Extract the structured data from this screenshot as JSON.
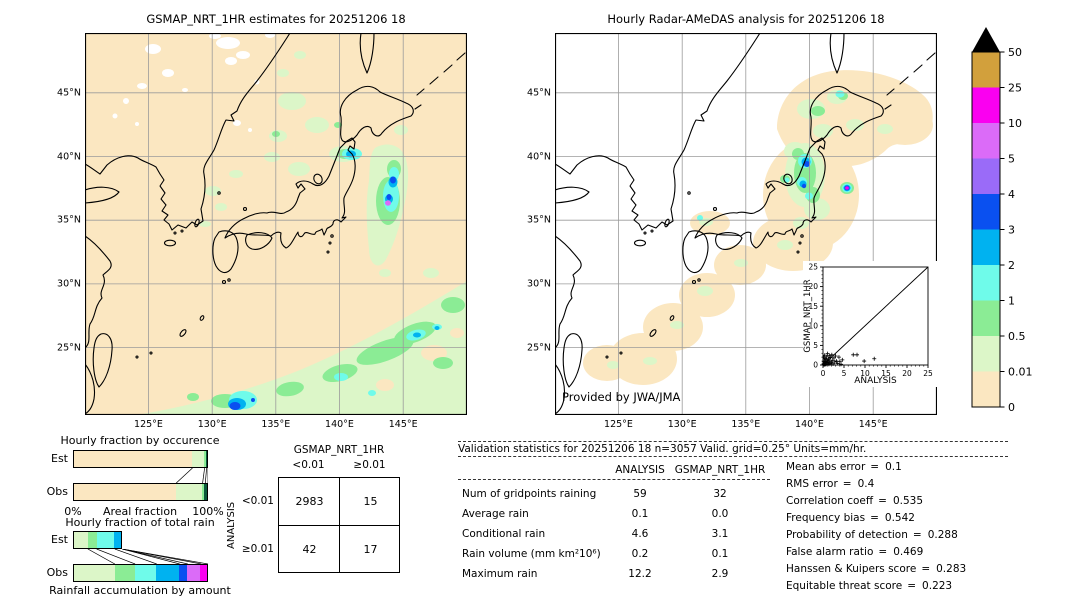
{
  "chart_data": [
    {
      "type": "map",
      "id": "gsmap_map",
      "title": "GSMAP_NRT_1HR estimates for 20251206 18",
      "lat_ticks": [
        "45°N",
        "40°N",
        "35°N",
        "30°N",
        "25°N"
      ],
      "lon_ticks": [
        "125°E",
        "130°E",
        "135°E",
        "140°E",
        "145°E"
      ],
      "background_color": "#fbe7c1"
    },
    {
      "type": "map",
      "id": "radar_amedas_map",
      "title": "Hourly Radar-AMeDAS analysis for 20251206 18",
      "lat_ticks": [
        "45°N",
        "40°N",
        "35°N",
        "30°N",
        "25°N"
      ],
      "lon_ticks": [
        "125°E",
        "130°E",
        "135°E",
        "140°E",
        "145°E"
      ],
      "background_color": "#ffffff",
      "credit": "Provided by JWA/JMA"
    },
    {
      "type": "colorbar",
      "units": "mm/hr",
      "tick_labels": [
        "50",
        "25",
        "10",
        "5",
        "4",
        "3",
        "2",
        "1",
        "0.5",
        "0.01",
        "0"
      ],
      "segment_colors_top_to_bottom": [
        "#d2a03c",
        "#fa00f0",
        "#db6bf8",
        "#9a6bf8",
        "#0a50f0",
        "#00b2f0",
        "#6ffbea",
        "#8bec95",
        "#dcf6c8",
        "#fbe7c1"
      ],
      "overflow_marker_color": "#000000"
    },
    {
      "type": "scatter",
      "id": "inset_scatter",
      "xlabel": "ANALYSIS",
      "ylabel": "GSMAP_NRT_1HR",
      "xlim": [
        0,
        25
      ],
      "ylim": [
        0,
        25
      ],
      "xticks": [
        0,
        5,
        10,
        15,
        20,
        25
      ],
      "yticks": [
        0,
        5,
        10,
        15,
        20,
        25
      ],
      "identity_line": true,
      "marker": "+",
      "points": [
        [
          0.1,
          0.1
        ],
        [
          0.15,
          0.45
        ],
        [
          0.2,
          0.2
        ],
        [
          0.25,
          0.9
        ],
        [
          0.3,
          0.15
        ],
        [
          0.35,
          1.3
        ],
        [
          0.4,
          0.5
        ],
        [
          0.45,
          0.1
        ],
        [
          0.5,
          1.7
        ],
        [
          0.55,
          0.3
        ],
        [
          0.6,
          0.9
        ],
        [
          0.7,
          0.2
        ],
        [
          0.75,
          1.4
        ],
        [
          0.8,
          0.6
        ],
        [
          0.9,
          2.1
        ],
        [
          1.0,
          0.3
        ],
        [
          1.05,
          1.1
        ],
        [
          1.1,
          2.9
        ],
        [
          1.2,
          0.7
        ],
        [
          1.3,
          1.6
        ],
        [
          1.4,
          0.2
        ],
        [
          1.5,
          2.4
        ],
        [
          1.6,
          0.9
        ],
        [
          1.7,
          0.4
        ],
        [
          1.8,
          1.9
        ],
        [
          2.0,
          0.6
        ],
        [
          2.1,
          2.6
        ],
        [
          2.2,
          1.2
        ],
        [
          2.4,
          0.3
        ],
        [
          2.6,
          1.8
        ],
        [
          2.8,
          0.8
        ],
        [
          3.0,
          2.3
        ],
        [
          3.2,
          1.0
        ],
        [
          3.5,
          0.4
        ],
        [
          3.8,
          2.0
        ],
        [
          4.0,
          0.9
        ],
        [
          4.3,
          0.2
        ],
        [
          4.6,
          1.3
        ],
        [
          0.2,
          2.0
        ],
        [
          0.4,
          2.5
        ],
        [
          7.2,
          2.6
        ],
        [
          8.1,
          2.6
        ],
        [
          9.8,
          1.0
        ],
        [
          12.2,
          1.6
        ]
      ]
    },
    {
      "type": "bar",
      "id": "occurrence_fraction",
      "orientation": "horizontal-stacked",
      "title": "Hourly fraction by occurence",
      "categories": [
        "Est",
        "Obs"
      ],
      "xlabel": "Areal fraction",
      "x_end_labels": [
        "0%",
        "100%"
      ],
      "series": [
        {
          "category": "Est",
          "segments": [
            {
              "color": "#fbe7c1",
              "pct": 88.5
            },
            {
              "color": "#dcf6c8",
              "pct": 9.0
            },
            {
              "color": "#8bec95",
              "pct": 1.5
            },
            {
              "color": "#0b5a3c",
              "pct": 1.0
            }
          ]
        },
        {
          "category": "Obs",
          "segments": [
            {
              "color": "#fbe7c1",
              "pct": 76.5
            },
            {
              "color": "#dcf6c8",
              "pct": 19.5
            },
            {
              "color": "#8bec95",
              "pct": 2.0
            },
            {
              "color": "#0b5a3c",
              "pct": 2.0
            }
          ]
        }
      ]
    },
    {
      "type": "bar",
      "id": "total_rain_fraction",
      "orientation": "horizontal-stacked",
      "title": "Hourly fraction of total rain",
      "categories": [
        "Est",
        "Obs"
      ],
      "xlabel": "Rainfall accumulation by amount",
      "series": [
        {
          "category": "Est",
          "segments": [
            {
              "color": "#dcf6c8",
              "pct": 11.0
            },
            {
              "color": "#8bec95",
              "pct": 6.5
            },
            {
              "color": "#6ffbea",
              "pct": 13.5
            },
            {
              "color": "#00b2f0",
              "pct": 5.5
            }
          ]
        },
        {
          "category": "Obs",
          "segments": [
            {
              "color": "#dcf6c8",
              "pct": 31.0
            },
            {
              "color": "#8bec95",
              "pct": 15.0
            },
            {
              "color": "#6ffbea",
              "pct": 16.0
            },
            {
              "color": "#00b2f0",
              "pct": 17.0
            },
            {
              "color": "#0a50f0",
              "pct": 6.0
            },
            {
              "color": "#db6bf8",
              "pct": 10.0
            },
            {
              "color": "#fa00f0",
              "pct": 5.0
            }
          ]
        }
      ]
    },
    {
      "type": "table",
      "id": "contingency_table",
      "col_group": "GSMAP_NRT_1HR",
      "row_group": "ANALYSIS",
      "col_labels": [
        "<0.01",
        "≥0.01"
      ],
      "row_labels": [
        "<0.01",
        "≥0.01"
      ],
      "values": [
        [
          "2983",
          "15"
        ],
        [
          "42",
          "17"
        ]
      ]
    },
    {
      "type": "table",
      "id": "validation_stats",
      "header": "Validation statistics for 20251206 18  n=3057 Valid. grid=0.25° Units=mm/hr.",
      "columns": [
        "ANALYSIS",
        "GSMAP_NRT_1HR"
      ],
      "separator": "=",
      "rows": [
        {
          "label": "Num of gridpoints raining",
          "values": [
            "59",
            "32"
          ]
        },
        {
          "label": "Average rain",
          "values": [
            "0.1",
            "0.0"
          ]
        },
        {
          "label": "Conditional rain",
          "values": [
            "4.6",
            "3.1"
          ]
        },
        {
          "label": "Rain volume (mm km²10⁶)",
          "values": [
            "0.2",
            "0.1"
          ]
        },
        {
          "label": "Maximum rain",
          "values": [
            "12.2",
            "2.9"
          ]
        }
      ],
      "metrics": [
        {
          "label": "Mean abs error",
          "value": "0.1"
        },
        {
          "label": "RMS error",
          "value": "0.4"
        },
        {
          "label": "Correlation coeff",
          "value": "0.535"
        },
        {
          "label": "Frequency bias",
          "value": "0.542"
        },
        {
          "label": "Probability of detection",
          "value": "0.288"
        },
        {
          "label": "False alarm ratio",
          "value": "0.469"
        },
        {
          "label": "Hanssen & Kuipers score",
          "value": "0.283"
        },
        {
          "label": "Equitable threat score",
          "value": "0.223"
        }
      ]
    }
  ]
}
